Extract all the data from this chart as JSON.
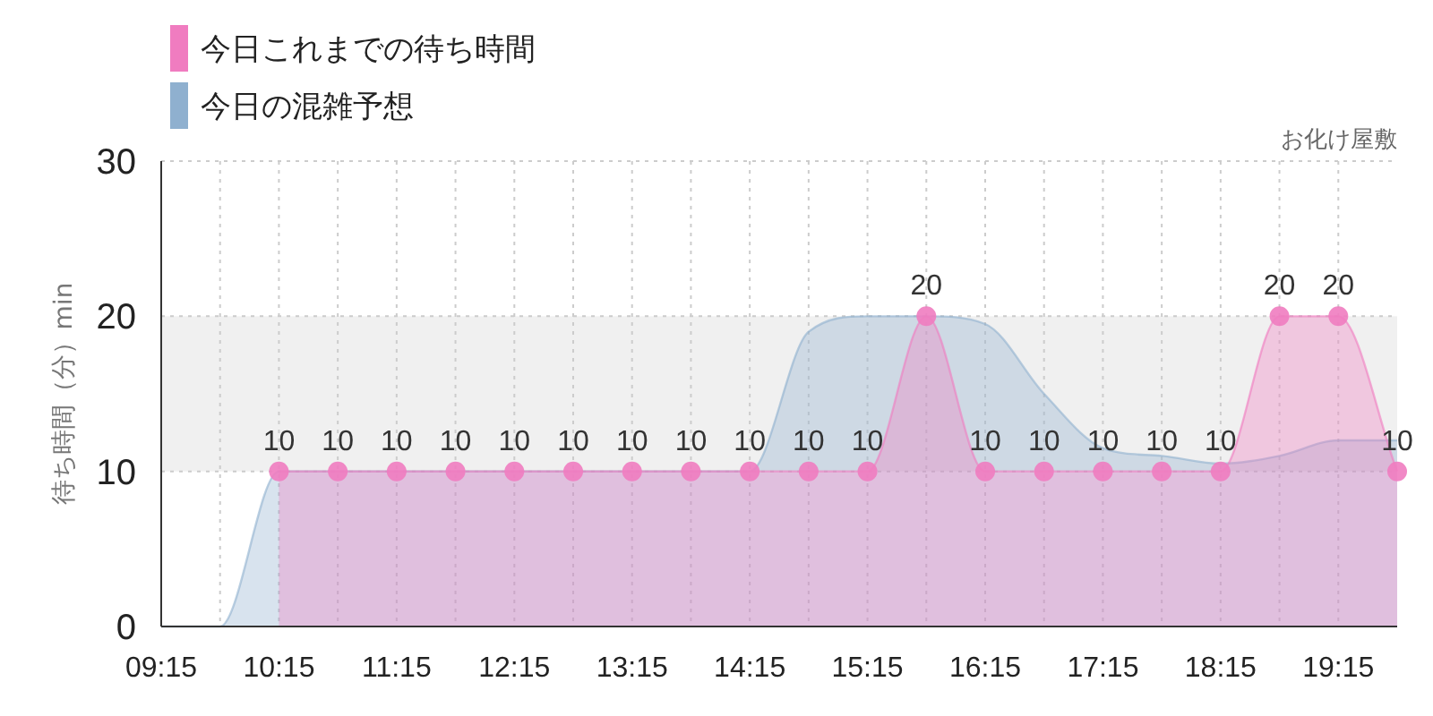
{
  "chart_data": {
    "type": "area",
    "subtitle": "お化け屋敷",
    "ylabel": "待ち時間（分）min",
    "xlim": [
      9.25,
      19.75
    ],
    "ylim": [
      0,
      30
    ],
    "xticks": [
      {
        "value": 9.25,
        "label": "09:15"
      },
      {
        "value": 9.75,
        "label": null
      },
      {
        "value": 10.25,
        "label": "10:15"
      },
      {
        "value": 10.75,
        "label": null
      },
      {
        "value": 11.25,
        "label": "11:15"
      },
      {
        "value": 11.75,
        "label": null
      },
      {
        "value": 12.25,
        "label": "12:15"
      },
      {
        "value": 12.75,
        "label": null
      },
      {
        "value": 13.25,
        "label": "13:15"
      },
      {
        "value": 13.75,
        "label": null
      },
      {
        "value": 14.25,
        "label": "14:15"
      },
      {
        "value": 14.75,
        "label": null
      },
      {
        "value": 15.25,
        "label": "15:15"
      },
      {
        "value": 15.75,
        "label": null
      },
      {
        "value": 16.25,
        "label": "16:15"
      },
      {
        "value": 16.75,
        "label": null
      },
      {
        "value": 17.25,
        "label": "17:15"
      },
      {
        "value": 17.75,
        "label": null
      },
      {
        "value": 18.25,
        "label": "18:15"
      },
      {
        "value": 18.75,
        "label": null
      },
      {
        "value": 19.25,
        "label": "19:15"
      }
    ],
    "yticks": [
      0,
      10,
      20,
      30
    ],
    "grid": true,
    "legend": "top left",
    "marker": "circle",
    "bands": [
      {
        "axis": "y",
        "from": 10,
        "to": 20,
        "label": null,
        "color": "#f0f0f0"
      }
    ],
    "series": [
      {
        "name": "今日これまでの待ち時間",
        "color": "#f07cc0",
        "x": [
          10.25,
          10.75,
          11.25,
          11.75,
          12.25,
          12.75,
          13.25,
          13.75,
          14.25,
          14.75,
          15.25,
          15.75,
          16.25,
          16.75,
          17.25,
          17.75,
          18.25,
          18.75,
          19.25,
          19.75
        ],
        "values": [
          10,
          10,
          10,
          10,
          10,
          10,
          10,
          10,
          10,
          10,
          10,
          20,
          10,
          10,
          10,
          10,
          10,
          20,
          20,
          10
        ],
        "value_labels": [
          "10",
          "10",
          "10",
          "10",
          "10",
          "10",
          "10",
          "10",
          "10",
          "10",
          "10",
          "20",
          "10",
          "10",
          "10",
          "10",
          "10",
          "20",
          "20",
          "10"
        ]
      },
      {
        "name": "今日の混雑予想",
        "color": "#8fb0cf",
        "marker": "none",
        "x": [
          9.25,
          9.75,
          10.25,
          10.75,
          11.25,
          11.75,
          12.25,
          12.75,
          13.25,
          13.75,
          14.25,
          14.75,
          15.25,
          15.75,
          16.25,
          16.75,
          17.25,
          17.75,
          18.25,
          18.75,
          19.25,
          19.75
        ],
        "values": [
          0,
          0,
          10,
          10,
          10,
          10,
          10,
          10,
          10,
          10,
          10,
          19,
          20,
          20,
          19.5,
          15,
          11.5,
          11,
          10.5,
          11,
          12,
          12
        ]
      }
    ]
  }
}
